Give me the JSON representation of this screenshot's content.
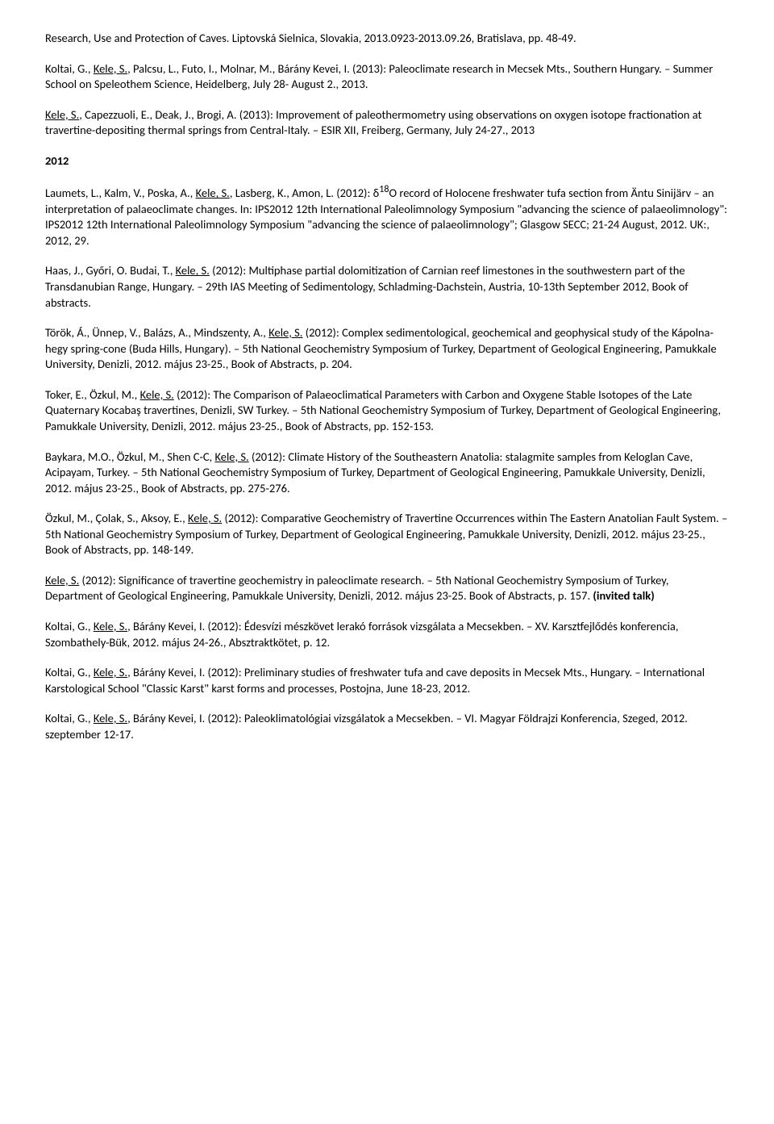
{
  "p1": {
    "pre": "Research, Use and Protection of Caves. Liptovská Sielnica, Slovakia, 2013.0923-2013.09.26, Bratislava, pp. 48-49."
  },
  "p2": {
    "a": "Koltai, G., ",
    "u": "Kele, S.",
    "b": ", Palcsu, L., Futo, I., Molnar, M., Bárány Kevei, I. (2013): Paleoclimate research in Mecsek Mts., Southern Hungary. – Summer School on Speleothem Science, Heidelberg, July 28- August 2., 2013."
  },
  "p3": {
    "u": "Kele, S.",
    "a": ", Capezzuoli, E., Deak, J., Brogi, A. (2013): Improvement of paleothermometry using observations on oxygen isotope fractionation at travertine-depositing thermal springs from Central-Italy. – ESIR XII, Freiberg, Germany, July 24-27., 2013"
  },
  "year2012": "2012",
  "p4": {
    "a": "Laumets, L., Kalm, V., Poska, A., ",
    "u": "Kele, S.",
    "b": ", Lasberg, K., Amon, L. (2012): δ",
    "sup": "18",
    "c": "O record of Holocene freshwater tufa section from Äntu Sinijärv – an interpretation of palaeoclimate changes. In: IPS2012 12th International Paleolimnology Symposium \"advancing the science of palaeolimnology\": IPS2012 12th International Paleolimnology Symposium \"advancing the science of palaeolimnology\"; Glasgow SECC; 21-24 August, 2012. UK:, 2012, 29."
  },
  "p5": {
    "a": "Haas, J., Győri, O. Budai, T., ",
    "u": "Kele, S.",
    "b": " (2012): Multiphase partial dolomitization of Carnian reef limestones in the southwestern part of the Transdanubian Range, Hungary. – 29th IAS Meeting of Sedimentology, Schladming-Dachstein, Austria, 10-13th September 2012, Book of abstracts."
  },
  "p6": {
    "a": "Török, Á., Ünnep, V., Balázs, A., Mindszenty, A., ",
    "u": "Kele, S.",
    "b": " (2012): Complex sedimentological, geochemical and geophysical study of the Kápolna-hegy spring-cone (Buda Hills, Hungary). – 5th National Geochemistry Symposium of Turkey, Department of Geological Engineering, Pamukkale University, Denizli, 2012. május 23-25., Book of Abstracts, p. 204."
  },
  "p7": {
    "a": "Toker, E., Özkul, M., ",
    "u": "Kele, S.",
    "b": " (2012): The Comparison of Palaeoclimatical Parameters with Carbon and Oxygene Stable Isotopes of the Late Quaternary Kocabaş travertines, Denizli, SW Turkey. – 5th National Geochemistry Symposium of Turkey, Department of Geological Engineering, Pamukkale University, Denizli, 2012. május 23-25., Book of Abstracts, pp. 152-153."
  },
  "p8": {
    "a": "Baykara, M.O., Özkul, M., Shen C-C, ",
    "u": "Kele, S.",
    "b": " (2012): Climate History of the Southeastern Anatolia: stalagmite samples from Keloglan Cave, Acipayam, Turkey. – 5th National Geochemistry Symposium of Turkey, Department of Geological Engineering, Pamukkale University, Denizli, 2012. május 23-25., Book of Abstracts, pp. 275-276."
  },
  "p9": {
    "a": "Özkul, M., Çolak, S., Aksoy, E., ",
    "u": "Kele, S.",
    "b": " (2012): Comparative Geochemistry of Travertine Occurrences within The Eastern Anatolian Fault System. – 5th National Geochemistry Symposium of Turkey, Department of Geological Engineering, Pamukkale University, Denizli, 2012. május 23-25., Book of Abstracts, pp. 148-149."
  },
  "p10": {
    "u": "Kele, S.",
    "a": " (2012): Significance of travertine geochemistry in paleoclimate research. – 5th National Geochemistry Symposium of Turkey, Department of Geological Engineering, Pamukkale University, Denizli, 2012. május 23-25. Book of Abstracts, p. 157. ",
    "bold": "(invited talk)"
  },
  "p11": {
    "a": "Koltai, G., ",
    "u": "Kele, S.",
    "b": ", Bárány Kevei, I. (2012): Édesvízi mészkövet lerakó források vizsgálata a Mecsekben. – XV. Karsztfejlődés konferencia, Szombathely-Bük, 2012. május 24-26., Absztraktkötet, p. 12."
  },
  "p12": {
    "a": "Koltai, G., ",
    "u": "Kele, S.",
    "b": ", Bárány Kevei, I. (2012): Preliminary studies of freshwater tufa and cave deposits in Mecsek Mts., Hungary. – International Karstological School \"Classic Karst\" karst forms and processes, Postojna, June 18-23, 2012."
  },
  "p13": {
    "a": "Koltai, G., ",
    "u": "Kele, S.",
    "b": ", Bárány Kevei, I. (2012): Paleoklimatológiai vizsgálatok a Mecsekben. – VI. Magyar Földrajzi Konferencia, Szeged, 2012. szeptember 12-17."
  }
}
